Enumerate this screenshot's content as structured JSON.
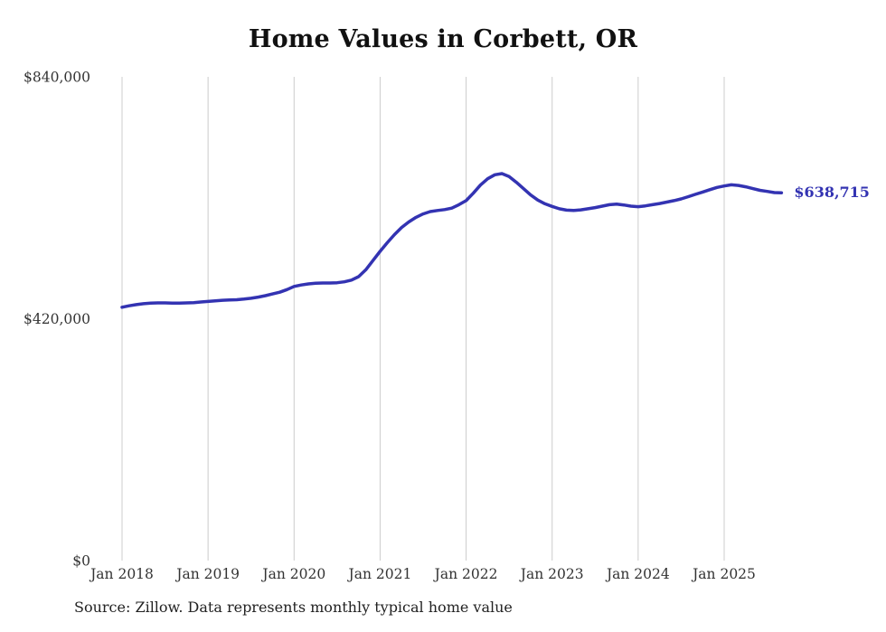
{
  "page": {
    "source_note": "Source: Zillow. Data represents monthly typical home value"
  },
  "chart_data": {
    "type": "line",
    "title": "Home Values in Corbett, OR",
    "xlabel": "",
    "ylabel": "",
    "ylim": [
      0,
      840000
    ],
    "grid": "vertical-only",
    "legend": "none",
    "end_label": "$638,715",
    "end_value": 638715,
    "y_ticks": [
      {
        "value": 0,
        "label": "$0"
      },
      {
        "value": 420000,
        "label": "$420,000"
      },
      {
        "value": 840000,
        "label": "$840,000"
      }
    ],
    "x_ticks": [
      "Jan 2018",
      "Jan 2019",
      "Jan 2020",
      "Jan 2021",
      "Jan 2022",
      "Jan 2023",
      "Jan 2024",
      "Jan 2025"
    ],
    "series": [
      {
        "name": "Typical home value",
        "color": "#3333b2",
        "x": [
          "2018-01",
          "2018-02",
          "2018-03",
          "2018-04",
          "2018-05",
          "2018-06",
          "2018-07",
          "2018-08",
          "2018-09",
          "2018-10",
          "2018-11",
          "2018-12",
          "2019-01",
          "2019-02",
          "2019-03",
          "2019-04",
          "2019-05",
          "2019-06",
          "2019-07",
          "2019-08",
          "2019-09",
          "2019-10",
          "2019-11",
          "2019-12",
          "2020-01",
          "2020-02",
          "2020-03",
          "2020-04",
          "2020-05",
          "2020-06",
          "2020-07",
          "2020-08",
          "2020-09",
          "2020-10",
          "2020-11",
          "2020-12",
          "2021-01",
          "2021-02",
          "2021-03",
          "2021-04",
          "2021-05",
          "2021-06",
          "2021-07",
          "2021-08",
          "2021-09",
          "2021-10",
          "2021-11",
          "2021-12",
          "2022-01",
          "2022-02",
          "2022-03",
          "2022-04",
          "2022-05",
          "2022-06",
          "2022-07",
          "2022-08",
          "2022-09",
          "2022-10",
          "2022-11",
          "2022-12",
          "2023-01",
          "2023-02",
          "2023-03",
          "2023-04",
          "2023-05",
          "2023-06",
          "2023-07",
          "2023-08",
          "2023-09",
          "2023-10",
          "2023-11",
          "2023-12",
          "2024-01",
          "2024-02",
          "2024-03",
          "2024-04",
          "2024-05",
          "2024-06",
          "2024-07",
          "2024-08",
          "2024-09",
          "2024-10",
          "2024-11",
          "2024-12",
          "2025-01",
          "2025-02",
          "2025-03",
          "2025-04",
          "2025-05",
          "2025-06",
          "2025-07",
          "2025-08",
          "2025-09"
        ],
        "values": [
          440000,
          442500,
          444500,
          446000,
          447000,
          447500,
          447500,
          447000,
          447000,
          447500,
          448000,
          449000,
          450000,
          451000,
          452000,
          452500,
          453000,
          454000,
          455500,
          457500,
          460000,
          463000,
          466000,
          470500,
          476000,
          478500,
          480500,
          481500,
          482000,
          482000,
          482500,
          484000,
          487000,
          493000,
          505000,
          521000,
          537000,
          552000,
          566000,
          578500,
          588000,
          596000,
          602000,
          606000,
          608000,
          609500,
          612000,
          618000,
          625000,
          638000,
          652000,
          663000,
          670000,
          672000,
          667000,
          657000,
          646000,
          635000,
          626000,
          619500,
          615000,
          611000,
          608500,
          608000,
          609000,
          611000,
          613000,
          615500,
          618000,
          619000,
          617500,
          615500,
          614500,
          616000,
          618000,
          620000,
          622500,
          625000,
          628000,
          632000,
          636000,
          640000,
          644000,
          648000,
          650500,
          652500,
          651500,
          649000,
          646000,
          643000,
          641000,
          639000,
          638715
        ]
      }
    ]
  }
}
